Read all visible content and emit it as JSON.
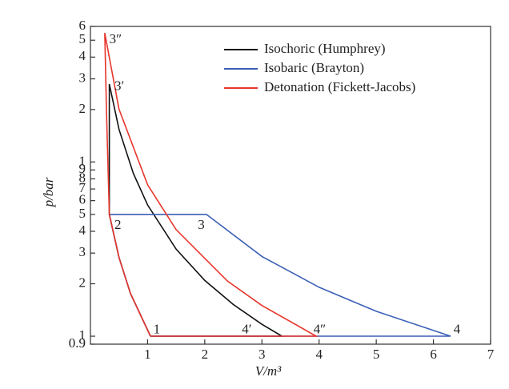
{
  "chart_data": {
    "type": "line",
    "xlabel": "V/m³",
    "ylabel": "p/bar",
    "log_y": true,
    "legend": "upper right",
    "xlim": [
      0,
      7
    ],
    "xticks": [
      1,
      2,
      3,
      4,
      5,
      6,
      7
    ],
    "ylim": [
      0.9,
      60
    ],
    "yticks": [
      0.9,
      1,
      2,
      3,
      4,
      5,
      6,
      7,
      8,
      9,
      {
        "value": 10,
        "label": "1"
      },
      {
        "value": 20,
        "label": "2"
      },
      {
        "value": 30,
        "label": "3"
      },
      {
        "value": 40,
        "label": "4"
      },
      {
        "value": 50,
        "label": "5"
      },
      {
        "value": 60,
        "label": "6"
      }
    ],
    "series": [
      {
        "name": "Isochoric (Humphrey)",
        "color": "#111111",
        "x": [
          1.05,
          0.7,
          0.5,
          0.33,
          0.33,
          0.5,
          0.75,
          1,
          1.5,
          2,
          2.5,
          3,
          3.35,
          1.05
        ],
        "values": [
          1,
          1.76,
          2.83,
          5,
          28,
          15.4,
          8.6,
          5.67,
          3.16,
          2.09,
          1.52,
          1.17,
          1,
          1
        ]
      },
      {
        "name": "Isobaric (Brayton)",
        "color": "#3a5fb5",
        "x": [
          1.05,
          0.7,
          0.5,
          0.33,
          2.03,
          3,
          4,
          5,
          6.3,
          1.05
        ],
        "values": [
          1,
          1.76,
          2.83,
          5,
          5,
          2.87,
          1.91,
          1.39,
          1,
          1
        ]
      },
      {
        "name": "Detonation (Fickett-Jacobs)",
        "color": "#e8352b",
        "x": [
          1.05,
          0.7,
          0.5,
          0.33,
          0.28,
          0.25,
          0.5,
          1,
          1.5,
          2.4,
          3,
          3.95,
          1.05
        ],
        "values": [
          1,
          1.76,
          2.83,
          5,
          20,
          55,
          20.1,
          7.4,
          4.09,
          2.07,
          1.5,
          1,
          1
        ]
      }
    ],
    "annotations": [
      {
        "text": "1",
        "x": 1.1,
        "y": 1.08
      },
      {
        "text": "2",
        "x": 0.42,
        "y": 4.3
      },
      {
        "text": "3",
        "x": 1.88,
        "y": 4.3
      },
      {
        "text": "4",
        "x": 6.35,
        "y": 1.08
      },
      {
        "text": "3′",
        "x": 0.42,
        "y": 27
      },
      {
        "text": "4′",
        "x": 2.65,
        "y": 1.08
      },
      {
        "text": "3″",
        "x": 0.33,
        "y": 50
      },
      {
        "text": "4″",
        "x": 3.9,
        "y": 1.08
      }
    ]
  }
}
